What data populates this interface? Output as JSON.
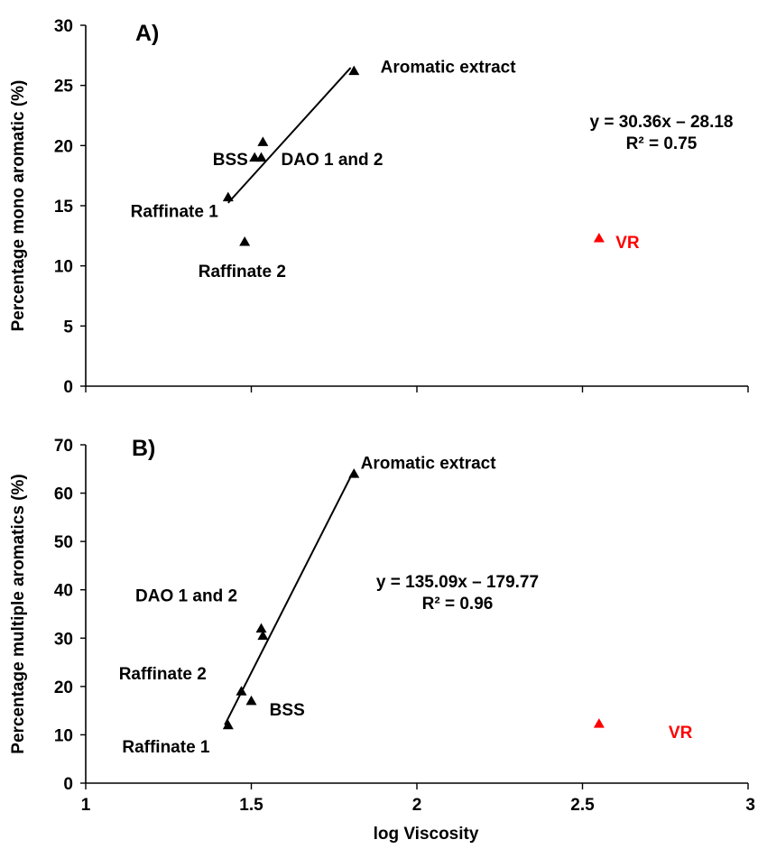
{
  "chart_data": [
    {
      "type": "scatter",
      "panel_label": "A)",
      "ylabel": "Percentage mono aromatic (%)",
      "xlabel": "",
      "xlim": [
        1,
        3
      ],
      "ylim": [
        0,
        30
      ],
      "xticks": [
        1,
        1.5,
        2,
        2.5,
        3
      ],
      "yticks": [
        0,
        5,
        10,
        15,
        20,
        25,
        30
      ],
      "show_x_tick_labels": false,
      "grid": false,
      "series": [
        {
          "color": "#000000",
          "marker": "triangle",
          "points": [
            {
              "x": 1.43,
              "y": 15.7
            },
            {
              "x": 1.48,
              "y": 12.0
            },
            {
              "x": 1.51,
              "y": 19.0
            },
            {
              "x": 1.53,
              "y": 19.0
            },
            {
              "x": 1.535,
              "y": 20.3
            },
            {
              "x": 1.81,
              "y": 26.2
            }
          ]
        },
        {
          "color": "#ff0000",
          "marker": "triangle",
          "points": [
            {
              "x": 2.55,
              "y": 12.3
            }
          ]
        }
      ],
      "trendline": {
        "x1": 1.43,
        "x2": 1.8,
        "slope": 30.36,
        "intercept": -28.18
      },
      "equation": "y = 30.36x – 28.18",
      "r2": "R² = 0.75",
      "labels": [
        {
          "text": "Aromatic extract",
          "x": 1.89,
          "y": 26.6,
          "color": "#000000",
          "anchor": "start"
        },
        {
          "text": "BSS",
          "x": 1.49,
          "y": 18.9,
          "color": "#000000",
          "anchor": "end"
        },
        {
          "text": "DAO 1 and 2",
          "x": 1.59,
          "y": 18.9,
          "color": "#000000",
          "anchor": "start"
        },
        {
          "text": "Raffinate 1",
          "x": 1.4,
          "y": 14.6,
          "color": "#000000",
          "anchor": "end"
        },
        {
          "text": "Raffinate 2",
          "x": 1.34,
          "y": 9.6,
          "color": "#000000",
          "anchor": "start"
        },
        {
          "text": "VR",
          "x": 2.6,
          "y": 12.0,
          "color": "#ff0000",
          "anchor": "start"
        }
      ]
    },
    {
      "type": "scatter",
      "panel_label": "B)",
      "ylabel": "Percentage multiple aromatics (%)",
      "xlabel": "log Viscosity",
      "xlim": [
        1,
        3
      ],
      "ylim": [
        0,
        70
      ],
      "xticks": [
        1,
        1.5,
        2,
        2.5,
        3
      ],
      "yticks": [
        0,
        10,
        20,
        30,
        40,
        50,
        60,
        70
      ],
      "show_x_tick_labels": true,
      "grid": false,
      "series": [
        {
          "color": "#000000",
          "marker": "triangle",
          "points": [
            {
              "x": 1.43,
              "y": 12.0
            },
            {
              "x": 1.47,
              "y": 19.0
            },
            {
              "x": 1.5,
              "y": 17.0
            },
            {
              "x": 1.53,
              "y": 32.0
            },
            {
              "x": 1.535,
              "y": 30.5
            },
            {
              "x": 1.81,
              "y": 64.0
            }
          ]
        },
        {
          "color": "#ff0000",
          "marker": "triangle",
          "points": [
            {
              "x": 2.55,
              "y": 12.3
            }
          ]
        }
      ],
      "trendline": {
        "x1": 1.42,
        "x2": 1.8,
        "slope": 135.09,
        "intercept": -179.77
      },
      "equation": "y = 135.09x – 179.77",
      "r2": "R² = 0.96",
      "labels": [
        {
          "text": "Aromatic extract",
          "x": 1.83,
          "y": 66.4,
          "color": "#000000",
          "anchor": "start"
        },
        {
          "text": "DAO 1 and 2",
          "x": 1.15,
          "y": 38.9,
          "color": "#000000",
          "anchor": "start"
        },
        {
          "text": "Raffinate 2",
          "x": 1.1,
          "y": 22.8,
          "color": "#000000",
          "anchor": "start"
        },
        {
          "text": "BSS",
          "x": 1.555,
          "y": 15.3,
          "color": "#000000",
          "anchor": "start"
        },
        {
          "text": "Raffinate 1",
          "x": 1.11,
          "y": 7.7,
          "color": "#000000",
          "anchor": "start"
        },
        {
          "text": "VR",
          "x": 2.76,
          "y": 10.6,
          "color": "#ff0000",
          "anchor": "start"
        }
      ]
    }
  ]
}
